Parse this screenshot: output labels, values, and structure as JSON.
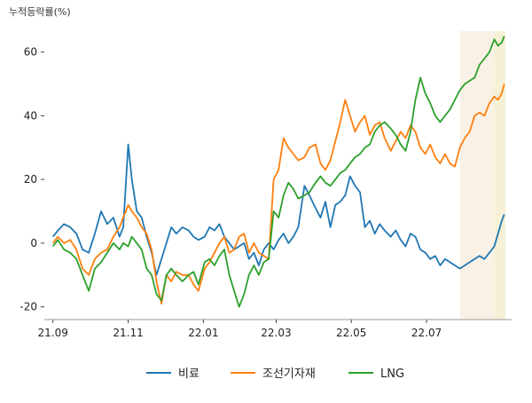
{
  "chart_data": {
    "type": "line",
    "ylabel": "누적등락률(%)",
    "ylim": [
      -24,
      68
    ],
    "xlim": [
      "2021-08-25",
      "2022-09-08"
    ],
    "yticks": [
      -20,
      0,
      20,
      40,
      60
    ],
    "xticks": [
      {
        "date": "2021-09-01",
        "label": "21.09"
      },
      {
        "date": "2021-11-01",
        "label": "21.11"
      },
      {
        "date": "2022-01-01",
        "label": "22.01"
      },
      {
        "date": "2022-03-01",
        "label": "22.03"
      },
      {
        "date": "2022-05-01",
        "label": "22.05"
      },
      {
        "date": "2022-07-01",
        "label": "22.07"
      }
    ],
    "highlight_bands": [
      {
        "start": "2022-07-28",
        "end": "2022-08-25",
        "color": "#faf1e6"
      },
      {
        "start": "2022-08-25",
        "end": "2022-09-03",
        "color": "#f6f0d6"
      }
    ],
    "legend_position": "bottom-center",
    "grid": false,
    "series": [
      {
        "name": "비료",
        "color": "#1f77b4",
        "points": [
          [
            "2021-09-01",
            2
          ],
          [
            "2021-09-05",
            4
          ],
          [
            "2021-09-10",
            6
          ],
          [
            "2021-09-15",
            5
          ],
          [
            "2021-09-20",
            3
          ],
          [
            "2021-09-25",
            -2
          ],
          [
            "2021-09-30",
            -3
          ],
          [
            "2021-10-05",
            3
          ],
          [
            "2021-10-10",
            10
          ],
          [
            "2021-10-15",
            6
          ],
          [
            "2021-10-20",
            8
          ],
          [
            "2021-10-25",
            2
          ],
          [
            "2021-10-28",
            5
          ],
          [
            "2021-11-01",
            31
          ],
          [
            "2021-11-04",
            20
          ],
          [
            "2021-11-08",
            10
          ],
          [
            "2021-11-12",
            8
          ],
          [
            "2021-11-16",
            2
          ],
          [
            "2021-11-20",
            -3
          ],
          [
            "2021-11-24",
            -10
          ],
          [
            "2021-11-28",
            -5
          ],
          [
            "2021-12-02",
            0
          ],
          [
            "2021-12-06",
            5
          ],
          [
            "2021-12-10",
            3
          ],
          [
            "2021-12-15",
            5
          ],
          [
            "2021-12-20",
            4
          ],
          [
            "2021-12-24",
            2
          ],
          [
            "2021-12-28",
            1
          ],
          [
            "2022-01-02",
            2
          ],
          [
            "2022-01-06",
            5
          ],
          [
            "2022-01-10",
            4
          ],
          [
            "2022-01-14",
            6
          ],
          [
            "2022-01-18",
            2
          ],
          [
            "2022-01-22",
            0
          ],
          [
            "2022-01-26",
            -2
          ],
          [
            "2022-01-30",
            -1
          ],
          [
            "2022-02-03",
            0
          ],
          [
            "2022-02-07",
            -5
          ],
          [
            "2022-02-11",
            -3
          ],
          [
            "2022-02-15",
            -7
          ],
          [
            "2022-02-19",
            -2
          ],
          [
            "2022-02-23",
            0
          ],
          [
            "2022-02-27",
            -2
          ],
          [
            "2022-03-03",
            1
          ],
          [
            "2022-03-07",
            3
          ],
          [
            "2022-03-11",
            0
          ],
          [
            "2022-03-15",
            2
          ],
          [
            "2022-03-19",
            5
          ],
          [
            "2022-03-24",
            18
          ],
          [
            "2022-03-28",
            15
          ],
          [
            "2022-04-02",
            11
          ],
          [
            "2022-04-06",
            8
          ],
          [
            "2022-04-10",
            13
          ],
          [
            "2022-04-14",
            5
          ],
          [
            "2022-04-18",
            12
          ],
          [
            "2022-04-22",
            13
          ],
          [
            "2022-04-26",
            15
          ],
          [
            "2022-04-30",
            21
          ],
          [
            "2022-05-04",
            18
          ],
          [
            "2022-05-08",
            16
          ],
          [
            "2022-05-12",
            5
          ],
          [
            "2022-05-16",
            7
          ],
          [
            "2022-05-20",
            3
          ],
          [
            "2022-05-24",
            6
          ],
          [
            "2022-05-28",
            4
          ],
          [
            "2022-06-02",
            2
          ],
          [
            "2022-06-06",
            4
          ],
          [
            "2022-06-10",
            1
          ],
          [
            "2022-06-14",
            -1
          ],
          [
            "2022-06-18",
            3
          ],
          [
            "2022-06-22",
            2
          ],
          [
            "2022-06-26",
            -2
          ],
          [
            "2022-06-30",
            -3
          ],
          [
            "2022-07-04",
            -5
          ],
          [
            "2022-07-08",
            -4
          ],
          [
            "2022-07-12",
            -7
          ],
          [
            "2022-07-16",
            -5
          ],
          [
            "2022-07-20",
            -6
          ],
          [
            "2022-07-24",
            -7
          ],
          [
            "2022-07-28",
            -8
          ],
          [
            "2022-08-01",
            -7
          ],
          [
            "2022-08-05",
            -6
          ],
          [
            "2022-08-09",
            -5
          ],
          [
            "2022-08-13",
            -4
          ],
          [
            "2022-08-17",
            -5
          ],
          [
            "2022-08-21",
            -3
          ],
          [
            "2022-08-25",
            -1
          ],
          [
            "2022-08-28",
            3
          ],
          [
            "2022-08-31",
            7
          ],
          [
            "2022-09-02",
            9
          ]
        ]
      },
      {
        "name": "조선기자재",
        "color": "#ff7f0e",
        "points": [
          [
            "2021-09-01",
            0
          ],
          [
            "2021-09-05",
            2
          ],
          [
            "2021-09-10",
            0
          ],
          [
            "2021-09-15",
            1
          ],
          [
            "2021-09-20",
            -2
          ],
          [
            "2021-09-25",
            -8
          ],
          [
            "2021-09-30",
            -10
          ],
          [
            "2021-10-05",
            -5
          ],
          [
            "2021-10-10",
            -3
          ],
          [
            "2021-10-15",
            -2
          ],
          [
            "2021-10-20",
            2
          ],
          [
            "2021-10-25",
            5
          ],
          [
            "2021-10-28",
            8
          ],
          [
            "2021-11-01",
            12
          ],
          [
            "2021-11-04",
            10
          ],
          [
            "2021-11-08",
            8
          ],
          [
            "2021-11-12",
            5
          ],
          [
            "2021-11-16",
            3
          ],
          [
            "2021-11-20",
            -2
          ],
          [
            "2021-11-24",
            -12
          ],
          [
            "2021-11-28",
            -19
          ],
          [
            "2021-12-02",
            -10
          ],
          [
            "2021-12-06",
            -12
          ],
          [
            "2021-12-10",
            -9
          ],
          [
            "2021-12-15",
            -10
          ],
          [
            "2021-12-20",
            -10
          ],
          [
            "2021-12-24",
            -13
          ],
          [
            "2021-12-28",
            -15
          ],
          [
            "2022-01-02",
            -8
          ],
          [
            "2022-01-06",
            -6
          ],
          [
            "2022-01-10",
            -3
          ],
          [
            "2022-01-14",
            0
          ],
          [
            "2022-01-18",
            2
          ],
          [
            "2022-01-22",
            -3
          ],
          [
            "2022-01-26",
            -2
          ],
          [
            "2022-01-30",
            2
          ],
          [
            "2022-02-03",
            3
          ],
          [
            "2022-02-07",
            -3
          ],
          [
            "2022-02-11",
            0
          ],
          [
            "2022-02-15",
            -3
          ],
          [
            "2022-02-19",
            -4
          ],
          [
            "2022-02-23",
            -5
          ],
          [
            "2022-02-27",
            20
          ],
          [
            "2022-03-03",
            23
          ],
          [
            "2022-03-07",
            33
          ],
          [
            "2022-03-11",
            30
          ],
          [
            "2022-03-15",
            28
          ],
          [
            "2022-03-19",
            26
          ],
          [
            "2022-03-24",
            27
          ],
          [
            "2022-03-28",
            30
          ],
          [
            "2022-04-02",
            31
          ],
          [
            "2022-04-06",
            25
          ],
          [
            "2022-04-10",
            23
          ],
          [
            "2022-04-14",
            26
          ],
          [
            "2022-04-18",
            32
          ],
          [
            "2022-04-22",
            38
          ],
          [
            "2022-04-26",
            45
          ],
          [
            "2022-04-30",
            40
          ],
          [
            "2022-05-04",
            35
          ],
          [
            "2022-05-08",
            38
          ],
          [
            "2022-05-12",
            40
          ],
          [
            "2022-05-16",
            34
          ],
          [
            "2022-05-20",
            37
          ],
          [
            "2022-05-24",
            38
          ],
          [
            "2022-05-28",
            33
          ],
          [
            "2022-06-02",
            29
          ],
          [
            "2022-06-06",
            32
          ],
          [
            "2022-06-10",
            35
          ],
          [
            "2022-06-14",
            33
          ],
          [
            "2022-06-18",
            37
          ],
          [
            "2022-06-22",
            35
          ],
          [
            "2022-06-26",
            30
          ],
          [
            "2022-06-30",
            28
          ],
          [
            "2022-07-04",
            31
          ],
          [
            "2022-07-08",
            27
          ],
          [
            "2022-07-12",
            25
          ],
          [
            "2022-07-16",
            28
          ],
          [
            "2022-07-20",
            25
          ],
          [
            "2022-07-24",
            24
          ],
          [
            "2022-07-28",
            30
          ],
          [
            "2022-08-01",
            33
          ],
          [
            "2022-08-05",
            35
          ],
          [
            "2022-08-09",
            40
          ],
          [
            "2022-08-13",
            41
          ],
          [
            "2022-08-17",
            40
          ],
          [
            "2022-08-21",
            44
          ],
          [
            "2022-08-25",
            46
          ],
          [
            "2022-08-28",
            45
          ],
          [
            "2022-08-31",
            47
          ],
          [
            "2022-09-02",
            50
          ]
        ]
      },
      {
        "name": "LNG",
        "color": "#2ca02c",
        "points": [
          [
            "2021-09-01",
            -1
          ],
          [
            "2021-09-05",
            1
          ],
          [
            "2021-09-10",
            -2
          ],
          [
            "2021-09-15",
            -3
          ],
          [
            "2021-09-20",
            -5
          ],
          [
            "2021-09-25",
            -10
          ],
          [
            "2021-09-30",
            -15
          ],
          [
            "2021-10-05",
            -8
          ],
          [
            "2021-10-10",
            -6
          ],
          [
            "2021-10-15",
            -3
          ],
          [
            "2021-10-20",
            0
          ],
          [
            "2021-10-25",
            -2
          ],
          [
            "2021-10-28",
            0
          ],
          [
            "2021-11-01",
            -1
          ],
          [
            "2021-11-04",
            2
          ],
          [
            "2021-11-08",
            0
          ],
          [
            "2021-11-12",
            -2
          ],
          [
            "2021-11-16",
            -8
          ],
          [
            "2021-11-20",
            -10
          ],
          [
            "2021-11-24",
            -16
          ],
          [
            "2021-11-28",
            -18
          ],
          [
            "2021-12-02",
            -10
          ],
          [
            "2021-12-06",
            -8
          ],
          [
            "2021-12-10",
            -10
          ],
          [
            "2021-12-15",
            -12
          ],
          [
            "2021-12-20",
            -10
          ],
          [
            "2021-12-24",
            -9
          ],
          [
            "2021-12-28",
            -13
          ],
          [
            "2022-01-02",
            -6
          ],
          [
            "2022-01-06",
            -5
          ],
          [
            "2022-01-10",
            -7
          ],
          [
            "2022-01-14",
            -4
          ],
          [
            "2022-01-18",
            -2
          ],
          [
            "2022-01-22",
            -10
          ],
          [
            "2022-01-26",
            -15
          ],
          [
            "2022-01-30",
            -20
          ],
          [
            "2022-02-03",
            -16
          ],
          [
            "2022-02-07",
            -10
          ],
          [
            "2022-02-11",
            -7
          ],
          [
            "2022-02-15",
            -10
          ],
          [
            "2022-02-19",
            -6
          ],
          [
            "2022-02-23",
            -5
          ],
          [
            "2022-02-27",
            10
          ],
          [
            "2022-03-03",
            8
          ],
          [
            "2022-03-07",
            15
          ],
          [
            "2022-03-11",
            19
          ],
          [
            "2022-03-15",
            17
          ],
          [
            "2022-03-19",
            14
          ],
          [
            "2022-03-24",
            15
          ],
          [
            "2022-03-28",
            16
          ],
          [
            "2022-04-02",
            19
          ],
          [
            "2022-04-06",
            21
          ],
          [
            "2022-04-10",
            19
          ],
          [
            "2022-04-14",
            18
          ],
          [
            "2022-04-18",
            20
          ],
          [
            "2022-04-22",
            22
          ],
          [
            "2022-04-26",
            23
          ],
          [
            "2022-04-30",
            25
          ],
          [
            "2022-05-04",
            27
          ],
          [
            "2022-05-08",
            28
          ],
          [
            "2022-05-12",
            30
          ],
          [
            "2022-05-16",
            31
          ],
          [
            "2022-05-20",
            35
          ],
          [
            "2022-05-24",
            37
          ],
          [
            "2022-05-28",
            38
          ],
          [
            "2022-06-02",
            36
          ],
          [
            "2022-06-06",
            34
          ],
          [
            "2022-06-10",
            31
          ],
          [
            "2022-06-14",
            29
          ],
          [
            "2022-06-18",
            35
          ],
          [
            "2022-06-22",
            45
          ],
          [
            "2022-06-26",
            52
          ],
          [
            "2022-06-30",
            47
          ],
          [
            "2022-07-04",
            44
          ],
          [
            "2022-07-08",
            40
          ],
          [
            "2022-07-12",
            38
          ],
          [
            "2022-07-16",
            40
          ],
          [
            "2022-07-20",
            42
          ],
          [
            "2022-07-24",
            45
          ],
          [
            "2022-07-28",
            48
          ],
          [
            "2022-08-01",
            50
          ],
          [
            "2022-08-05",
            51
          ],
          [
            "2022-08-09",
            52
          ],
          [
            "2022-08-13",
            56
          ],
          [
            "2022-08-17",
            58
          ],
          [
            "2022-08-21",
            60
          ],
          [
            "2022-08-25",
            64
          ],
          [
            "2022-08-28",
            62
          ],
          [
            "2022-08-31",
            63
          ],
          [
            "2022-09-02",
            65
          ]
        ]
      }
    ]
  }
}
